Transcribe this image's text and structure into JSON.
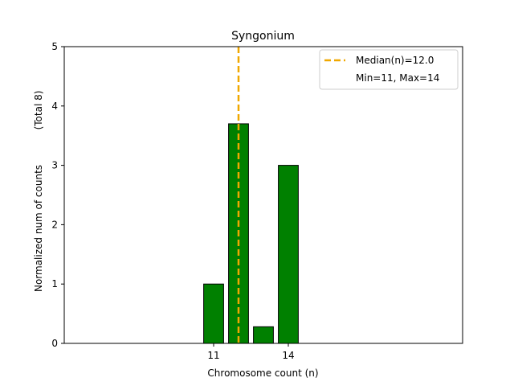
{
  "chart_data": {
    "type": "bar",
    "title": "Syngonium",
    "xlabel": "Chromosome count (n)",
    "ylabel": "Normalized num of counts",
    "ylabel_note": "(Total 8)",
    "xlim": [
      5,
      21
    ],
    "ylim": [
      0,
      5
    ],
    "x_ticks": [
      11,
      14
    ],
    "y_ticks": [
      0,
      1,
      2,
      3,
      4,
      5
    ],
    "bar_width": 0.8,
    "bars": [
      {
        "x": 11,
        "value": 1.0
      },
      {
        "x": 12,
        "value": 3.7
      },
      {
        "x": 13,
        "value": 0.28
      },
      {
        "x": 14,
        "value": 3.0
      }
    ],
    "bar_color": "#008000",
    "bar_edge_color": "#000000",
    "median": {
      "x": 12.0,
      "label": "Median(n)=12.0",
      "color": "#f0a800"
    },
    "range_label": "Min=11, Max=14",
    "legend_position": "top-right"
  }
}
